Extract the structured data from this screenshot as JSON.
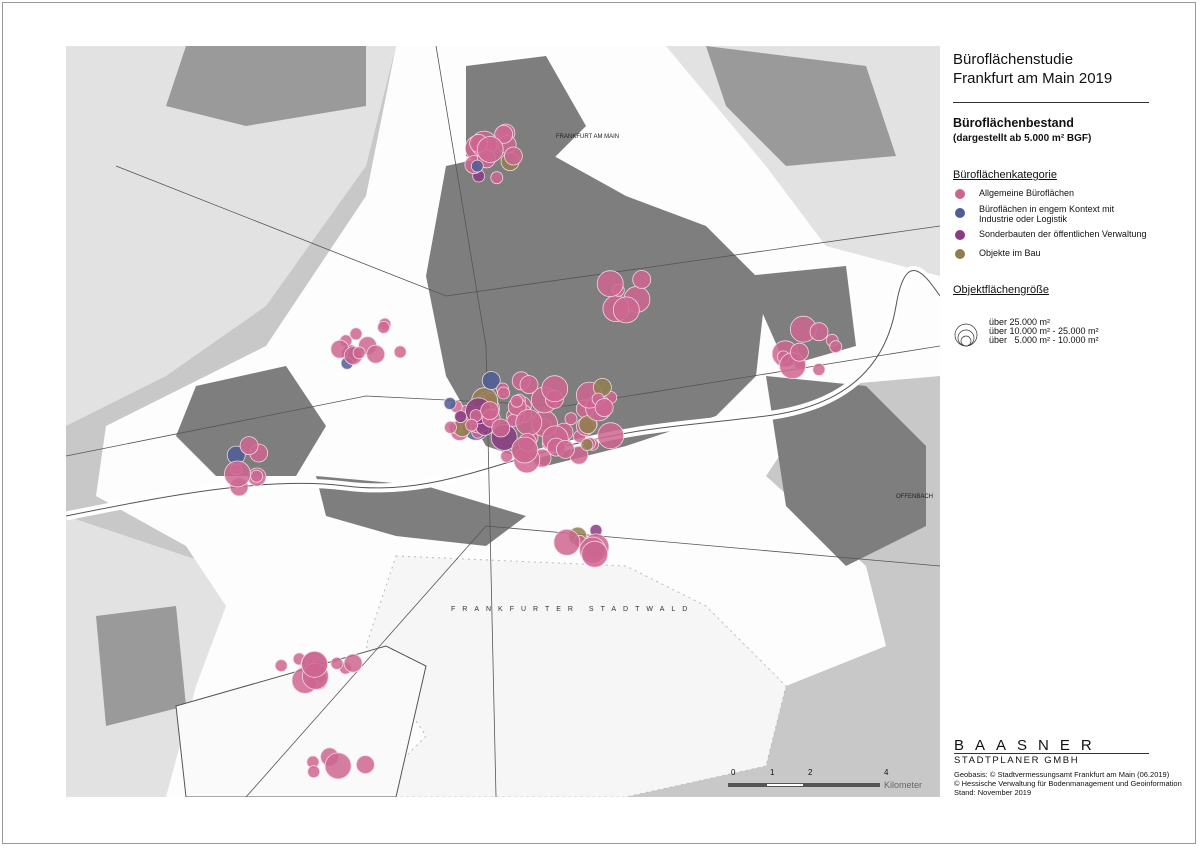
{
  "title": {
    "line1": "Büroflächenstudie",
    "line2": "Frankfurt am Main 2019"
  },
  "subtitle": {
    "main": "Büroflächenbestand",
    "note": "(dargestellt ab 5.000 m² BGF)"
  },
  "category_legend": {
    "heading": "Büroflächenkategorie",
    "items": [
      {
        "label": "Allgemeine Büroflächen",
        "color": "#cc6690"
      },
      {
        "label": "Büroflächen in engem Kontext mit Industrie oder Logistik",
        "color": "#4d5e97"
      },
      {
        "label": "Sonderbauten der öffentlichen Verwaltung",
        "color": "#8a3c82"
      },
      {
        "label": "Objekte im Bau",
        "color": "#8f7f4f"
      }
    ]
  },
  "size_legend": {
    "heading": "Objektflächengröße",
    "items": [
      "über 25.000 m²",
      "über 10.000 m² - 25.000 m²",
      "über   5.000 m² - 10.000 m²"
    ]
  },
  "scale_bar": {
    "ticks": [
      "0",
      "1",
      "2",
      "4"
    ],
    "unit": "Kilometer"
  },
  "logo": {
    "name": "BAASNER",
    "sub": "STADTPLANER GMBH"
  },
  "credits": [
    "Geobasis: © Stadtvermessungsamt Frankfurt am Main (06.2019)",
    "© Hessische Verwaltung für Bodenmanagement und Geoinformation",
    "Stand: November 2019"
  ],
  "map_labels": {
    "city": "FRANKFURT AM MAIN",
    "forest": "FRANKFURTER STADTWALD",
    "offenbach": "OFFENBACH"
  }
}
